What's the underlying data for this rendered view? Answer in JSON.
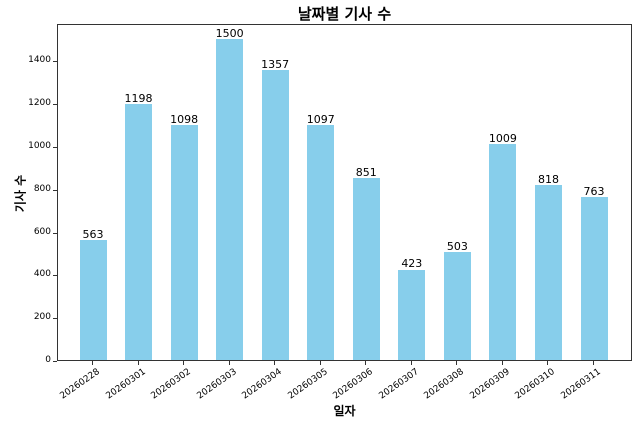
{
  "chart_data": {
    "type": "bar",
    "title": "날짜별 기사 수",
    "xlabel": "일자",
    "ylabel": "기사 수",
    "categories": [
      "20260228",
      "20260301",
      "20260302",
      "20260303",
      "20260304",
      "20260305",
      "20260306",
      "20260307",
      "20260308",
      "20260309",
      "20260310",
      "20260311"
    ],
    "values": [
      563,
      1198,
      1098,
      1500,
      1357,
      1097,
      851,
      423,
      503,
      1009,
      818,
      763
    ],
    "ylim": [
      0,
      1575
    ],
    "yticks": [
      0,
      200,
      400,
      600,
      800,
      1000,
      1200,
      1400
    ],
    "bar_color": "#87ceeb",
    "data_labels": true,
    "grid": false,
    "legend": null
  }
}
